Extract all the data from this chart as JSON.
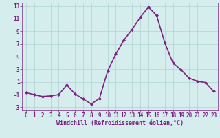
{
  "x": [
    0,
    1,
    2,
    3,
    4,
    5,
    6,
    7,
    8,
    9,
    10,
    11,
    12,
    13,
    14,
    15,
    16,
    17,
    18,
    19,
    20,
    21,
    22,
    23
  ],
  "y": [
    -0.7,
    -1.0,
    -1.3,
    -1.2,
    -1.0,
    0.5,
    -0.9,
    -1.7,
    -2.5,
    -1.6,
    2.7,
    5.4,
    7.6,
    9.3,
    11.2,
    12.8,
    11.5,
    7.2,
    4.0,
    2.9,
    1.6,
    1.1,
    0.9,
    -0.5
  ],
  "line_color": "#7B2182",
  "marker": "D",
  "marker_size": 2.0,
  "bg_color": "#d5eeed",
  "grid_color": "#b0d4d4",
  "xlabel": "Windchill (Refroidissement éolien,°C)",
  "ylim": [
    -3.5,
    13.5
  ],
  "xlim": [
    -0.5,
    23.5
  ],
  "yticks": [
    -3,
    -1,
    1,
    3,
    5,
    7,
    9,
    11,
    13
  ],
  "xticks": [
    0,
    1,
    2,
    3,
    4,
    5,
    6,
    7,
    8,
    9,
    10,
    11,
    12,
    13,
    14,
    15,
    16,
    17,
    18,
    19,
    20,
    21,
    22,
    23
  ],
  "label_color": "#7B2182",
  "tick_color": "#7B2182",
  "line_width": 1.2,
  "tick_fontsize": 5.5,
  "xlabel_fontsize": 6.0
}
